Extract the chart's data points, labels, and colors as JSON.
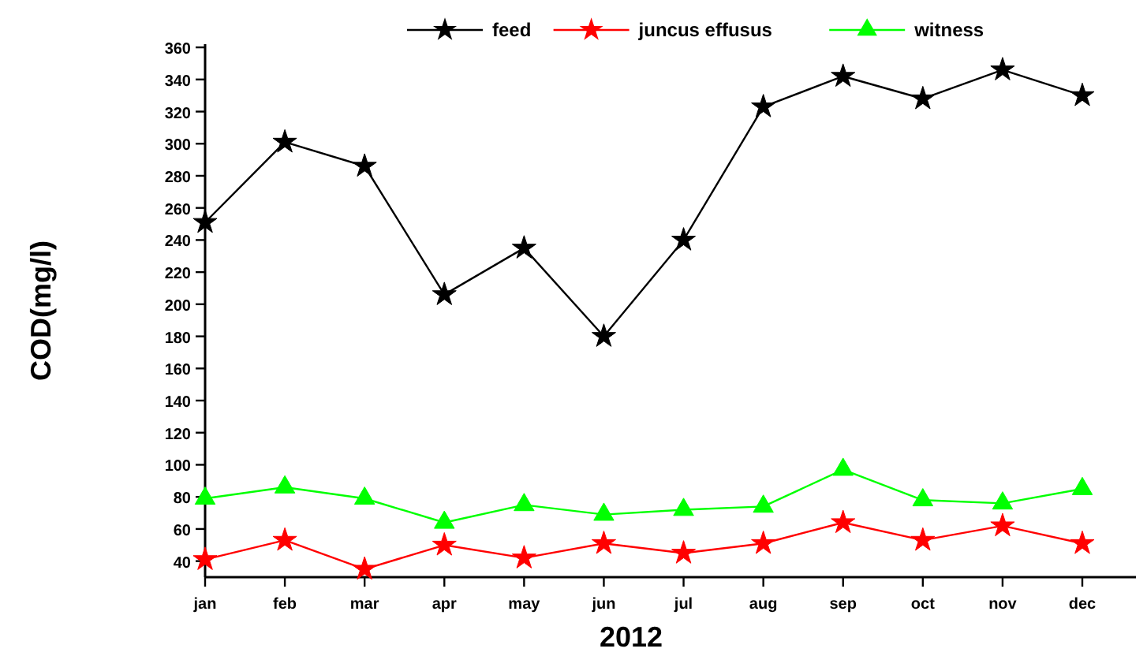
{
  "chart_data": {
    "type": "line",
    "xlabel": "2012",
    "ylabel": "COD(mg/l)",
    "categories": [
      "jan",
      "feb",
      "mar",
      "apr",
      "may",
      "jun",
      "jul",
      "aug",
      "sep",
      "oct",
      "nov",
      "dec"
    ],
    "series": [
      {
        "name": "feed",
        "color": "#000000",
        "marker": "star",
        "values": [
          251,
          301,
          286,
          206,
          235,
          180,
          240,
          323,
          342,
          328,
          346,
          330
        ]
      },
      {
        "name": "juncus effusus",
        "color": "#ff0000",
        "marker": "star",
        "values": [
          41,
          53,
          35,
          50,
          42,
          51,
          45,
          51,
          64,
          53,
          62,
          51
        ]
      },
      {
        "name": "witness",
        "color": "#00ff00",
        "marker": "triangle",
        "values": [
          79,
          86,
          79,
          64,
          75,
          69,
          72,
          74,
          97,
          78,
          76,
          85
        ]
      }
    ],
    "ylim": [
      30,
      362
    ],
    "yticks": [
      40,
      60,
      80,
      100,
      120,
      140,
      160,
      180,
      200,
      220,
      240,
      260,
      280,
      300,
      320,
      340,
      360
    ],
    "grid": false,
    "legend": "top right",
    "line_style": "solid"
  }
}
